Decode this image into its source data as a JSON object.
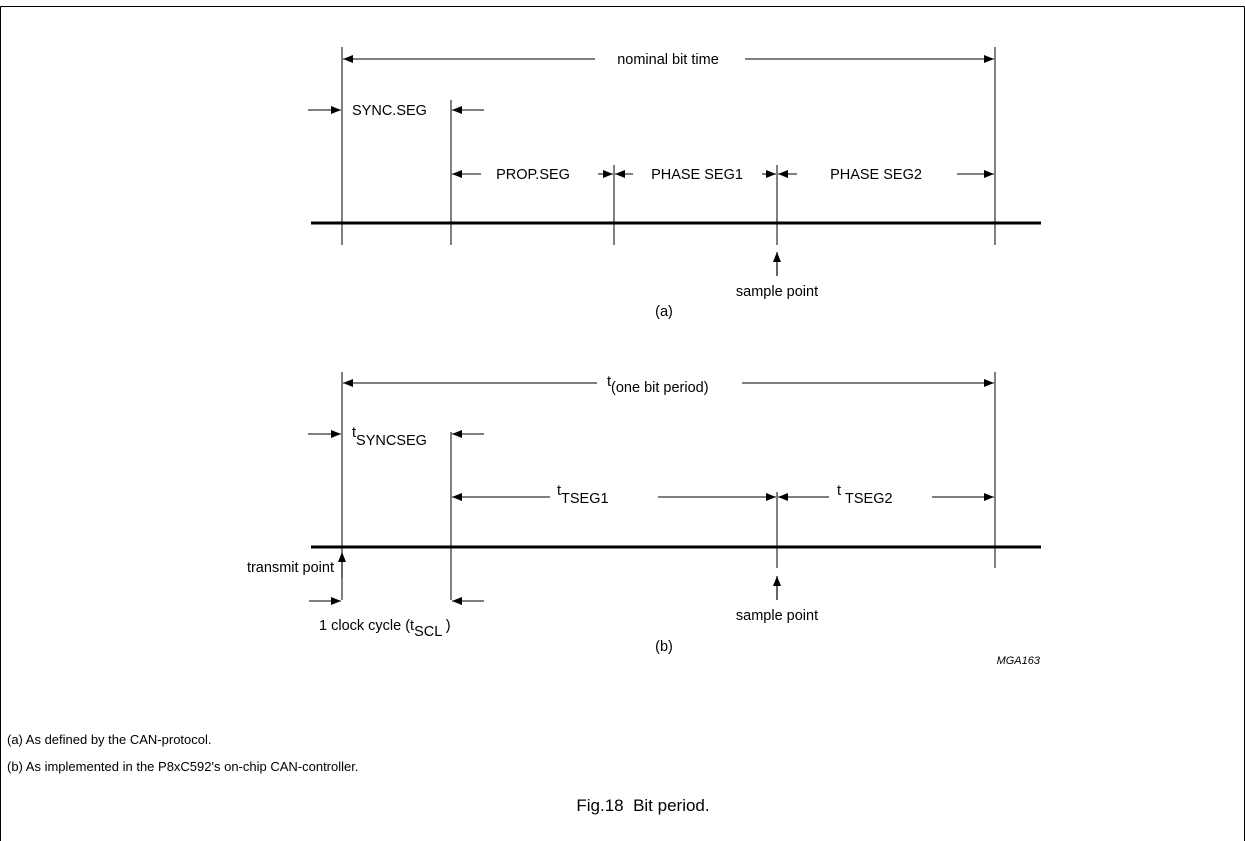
{
  "diagram_a": {
    "nominal_bit_time": "nominal bit time",
    "sync_seg": "SYNC.SEG",
    "prop_seg": "PROP.SEG",
    "phase_seg1": "PHASE SEG1",
    "phase_seg2": "PHASE SEG2",
    "sample_point": "sample point",
    "label": "(a)"
  },
  "diagram_b": {
    "bit_period_t": "t",
    "bit_period_sub": "(one bit period)",
    "syncseg_t": "t",
    "syncseg_sub": "SYNCSEG",
    "tseg1_t": "t",
    "tseg1_sub": "TSEG1",
    "tseg2_t": "t",
    "tseg2_sub": "TSEG2",
    "transmit_point": "transmit point",
    "clock_cycle_prefix": "1 clock cycle (t",
    "clock_cycle_sub": "SCL",
    "clock_cycle_suffix": " )",
    "sample_point": "sample point",
    "label": "(b)",
    "figure_code": "MGA163"
  },
  "notes": [
    "(a) As defined by the CAN-protocol.",
    "(b) As implemented in the P8xC592's on-chip CAN-controller."
  ],
  "caption": "Fig.18  Bit period.",
  "colors": {
    "ink": "#000000",
    "background": "#ffffff"
  }
}
